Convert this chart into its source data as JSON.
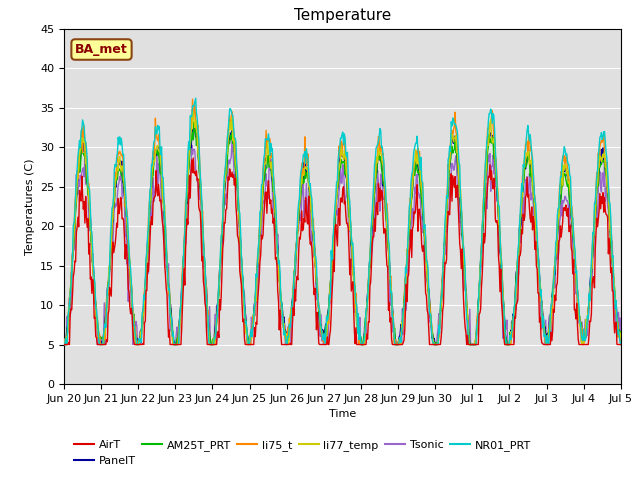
{
  "title": "Temperature",
  "ylabel": "Temperatures (C)",
  "xlabel": "Time",
  "ylim": [
    0,
    45
  ],
  "yticks": [
    0,
    5,
    10,
    15,
    20,
    25,
    30,
    35,
    40,
    45
  ],
  "background_color": "#ffffff",
  "plot_bg_color": "#e0e0e0",
  "annotation_text": "BA_met",
  "annotation_box_color": "#ffff99",
  "annotation_border_color": "#8B4513",
  "series_colors": {
    "AirT": "#dd0000",
    "PanelT": "#000099",
    "AM25T_PRT": "#00bb00",
    "li75_t": "#ff8800",
    "li77_temp": "#cccc00",
    "Tsonic": "#9966cc",
    "NR01_PRT": "#00cccc"
  },
  "x_tick_labels": [
    "Jun 20",
    "Jun 21",
    "Jun 22",
    "Jun 23",
    "Jun 24",
    "Jun 25",
    "Jun 26",
    "Jun 27",
    "Jun 28",
    "Jun 29",
    "Jun 30",
    "Jul 1",
    "Jul 2",
    "Jul 3",
    "Jul 4",
    "Jul 5"
  ],
  "grid_color": "#ffffff",
  "title_fontsize": 11,
  "axis_fontsize": 8,
  "legend_fontsize": 8
}
